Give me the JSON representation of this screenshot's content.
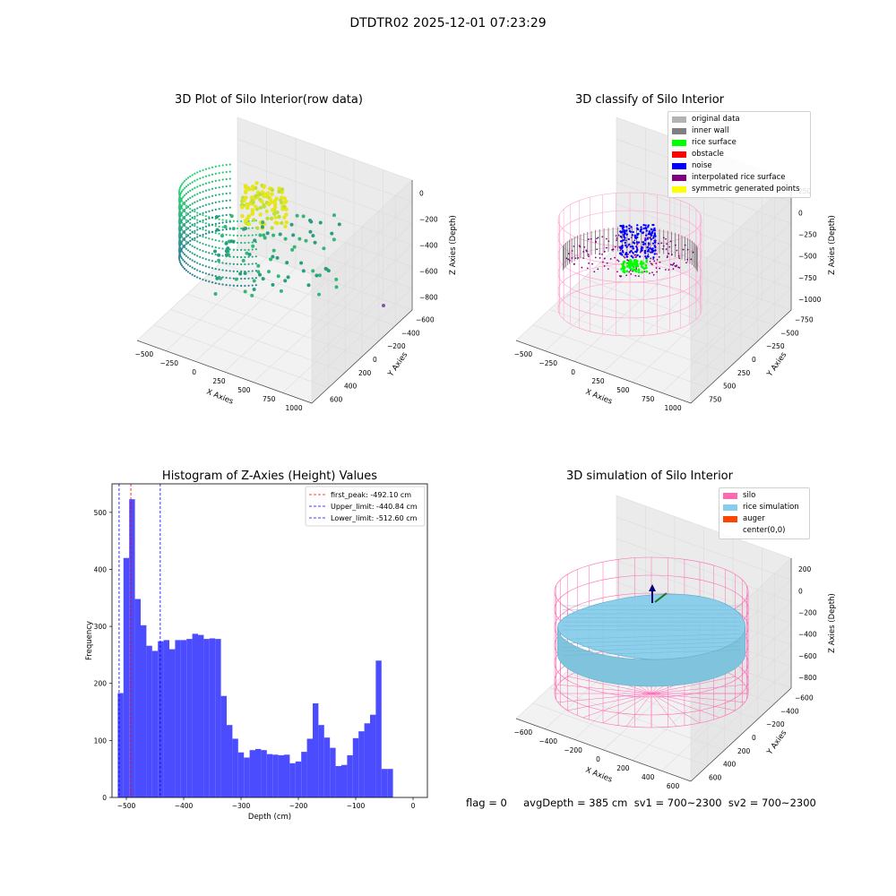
{
  "figure": {
    "suptitle": "DTDTR02 2025-12-01 07:23:29"
  },
  "panels": {
    "raw": {
      "title": "3D Plot of Silo Interior(row data)",
      "x_ticks": [
        "−500",
        "−250",
        "0",
        "250",
        "500",
        "750",
        "1000"
      ],
      "y_ticks": [
        "600",
        "400",
        "200",
        "0",
        "−200",
        "−400",
        "−600"
      ],
      "z_ticks": [
        "0",
        "−200",
        "−400",
        "−600",
        "−800"
      ],
      "xlabel": "X Axies",
      "ylabel": "Y Axies",
      "zlabel": "Z Axies (Depth)"
    },
    "classify": {
      "title": "3D classify of Silo Interior",
      "x_ticks": [
        "−500",
        "−250",
        "0",
        "250",
        "500",
        "750",
        "1000"
      ],
      "y_ticks": [
        "750",
        "500",
        "250",
        "0",
        "−250",
        "−500",
        "−750"
      ],
      "z_ticks": [
        "250",
        "0",
        "−250",
        "−500",
        "−750",
        "−1000"
      ],
      "xlabel": "X Axies",
      "ylabel": "Y Axies",
      "zlabel": "Z Axies (Depth)",
      "legend": [
        {
          "label": "original data",
          "color": "#b3b3b3"
        },
        {
          "label": "inner wall",
          "color": "#808080"
        },
        {
          "label": "rice surface",
          "color": "#00ff00"
        },
        {
          "label": "obstacle",
          "color": "#ff0000"
        },
        {
          "label": "noise",
          "color": "#0000ff"
        },
        {
          "label": "interpolated rice surface",
          "color": "#800080"
        },
        {
          "label": "symmetric generated points",
          "color": "#ffff00"
        }
      ]
    },
    "simulation": {
      "title": "3D simulation of Silo Interior",
      "x_ticks": [
        "−600",
        "−400",
        "−200",
        "0",
        "200",
        "400",
        "600"
      ],
      "y_ticks": [
        "600",
        "400",
        "200",
        "0",
        "−200",
        "−400",
        "−600"
      ],
      "z_ticks": [
        "200",
        "0",
        "−200",
        "−400",
        "−600",
        "−800"
      ],
      "xlabel": "X Axies",
      "ylabel": "Y Axies",
      "zlabel": "Z Axies (Depth)",
      "legend": [
        {
          "label": "silo",
          "color": "#ff69b4"
        },
        {
          "label": "rice simulation",
          "color": "#87ceeb"
        },
        {
          "label": "auger",
          "color": "#ff4500"
        },
        {
          "label": "center(0,0)",
          "color": ""
        }
      ]
    }
  },
  "chart_data": {
    "type": "bar",
    "title": "Histogram of Z-Axies (Height) Values",
    "xlabel": "Depth (cm)",
    "ylabel": "Frequency",
    "xlim": [
      -525,
      25
    ],
    "ylim": [
      0,
      550
    ],
    "x_ticks": [
      -500,
      -400,
      -300,
      -200,
      -100,
      0
    ],
    "x_tick_labels": [
      "−500",
      "−400",
      "−300",
      "−200",
      "−100",
      "0"
    ],
    "y_ticks": [
      0,
      100,
      200,
      300,
      400,
      500
    ],
    "bar_color": "#4c4cff",
    "bin_start": -515,
    "bin_width": 10,
    "values": [
      183,
      420,
      523,
      348,
      302,
      266,
      257,
      274,
      276,
      260,
      276,
      276,
      278,
      287,
      285,
      278,
      279,
      278,
      178,
      127,
      103,
      79,
      70,
      83,
      85,
      83,
      76,
      75,
      74,
      75,
      60,
      63,
      80,
      103,
      165,
      127,
      105,
      87,
      55,
      57,
      74,
      104,
      116,
      130,
      145,
      240,
      50,
      50
    ],
    "reference_lines": [
      {
        "name": "first_peak: -492.10 cm",
        "x": -492.1,
        "color": "#ff0000"
      },
      {
        "name": "Upper_limit: -440.84 cm",
        "x": -440.84,
        "color": "#0000ff"
      },
      {
        "name": "Lower_limit: -512.60 cm",
        "x": -512.6,
        "color": "#0000ff"
      }
    ],
    "legend_position": "top-right"
  },
  "status": {
    "text": "flag = 0     avgDepth = 385 cm  sv1 = 700~2300  sv2 = 700~2300"
  }
}
